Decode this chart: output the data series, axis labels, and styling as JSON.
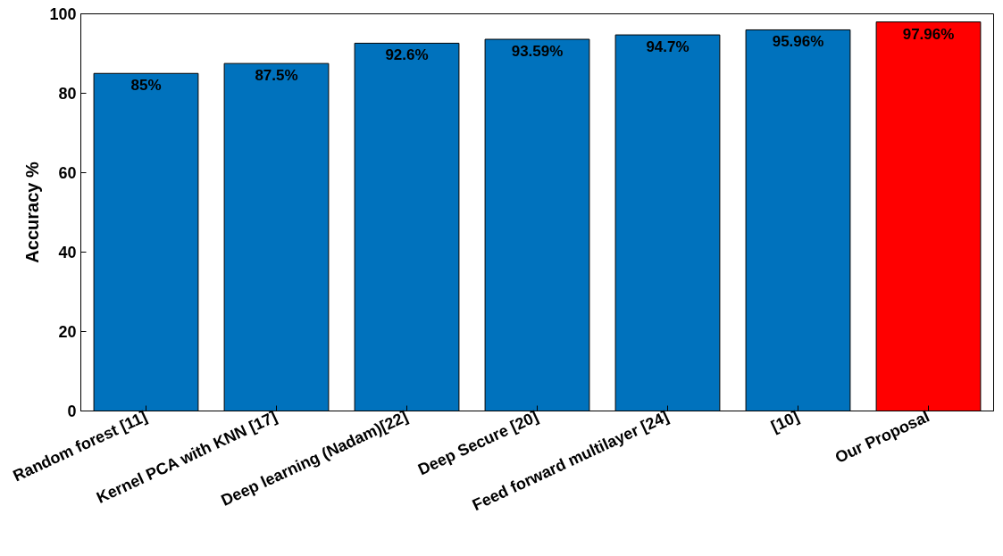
{
  "chart_data": {
    "type": "bar",
    "ylabel": "Accuracy %",
    "categories": [
      "Random forest [11]",
      "Kernel PCA with KNN [17]",
      "Deep learning (Nadam)[22]",
      "Deep Secure [20]",
      "Feed forward multilayer [24]",
      "[10]",
      "Our Proposal"
    ],
    "values": [
      85,
      87.5,
      92.6,
      93.59,
      94.7,
      95.96,
      97.96
    ],
    "colors": [
      "#0072bd",
      "#0072bd",
      "#0072bd",
      "#0072bd",
      "#0072bd",
      "#0072bd",
      "#ff0000"
    ],
    "value_labels": [
      "85%",
      "87.5%",
      "92.6%",
      "93.59%",
      "94.7%",
      "95.96%",
      "97.96%"
    ],
    "ylim": [
      0,
      100
    ],
    "yticks": [
      0,
      20,
      40,
      60,
      80,
      100
    ]
  }
}
